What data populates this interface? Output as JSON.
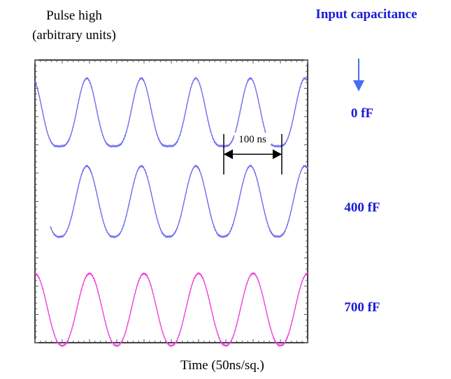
{
  "chart_data": {
    "type": "line",
    "ylabel_line1": "Pulse high",
    "ylabel_line2": "(arbitrary units)",
    "xlabel": "Time (50ns/sq.)",
    "legend_title": "Input capacitance",
    "annotation": "100 ns",
    "x_unit": "ns",
    "x_range": [
      0,
      500
    ],
    "x_divisions": 10,
    "y_divisions": 10,
    "period_ns": 100,
    "series": [
      {
        "name": "0 fF",
        "color": "#6b6bf0",
        "phase_ns": 95,
        "amplitude_div": 2.4,
        "base_div": 0.65,
        "start_ns": 0,
        "peak_exponent": 1.8
      },
      {
        "name": "400 fF",
        "color": "#6b6bf0",
        "phase_ns": 95,
        "amplitude_div": 2.5,
        "base_div": 3.75,
        "start_ns": 28,
        "peak_exponent": 1.4
      },
      {
        "name": "700 fF",
        "color": "#ee3fdc",
        "phase_ns": 100,
        "amplitude_div": 2.55,
        "base_div": 7.55,
        "start_ns": 0,
        "peak_exponent": 1.15
      }
    ],
    "legend_arrow_color": "#4a6cf0",
    "legend_text_color": "#1a1ad8"
  }
}
